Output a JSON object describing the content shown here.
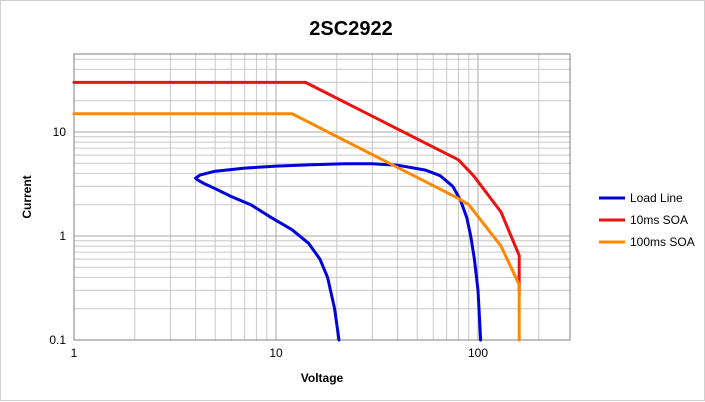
{
  "chart_data": {
    "type": "line",
    "title": "2SC2922",
    "xlabel": "Voltage",
    "ylabel": "Current",
    "x_scale": "log",
    "y_scale": "log",
    "xlim": [
      1,
      300
    ],
    "ylim": [
      0.1,
      50
    ],
    "x_ticks": [
      "1",
      "10",
      "100"
    ],
    "y_ticks": [
      "0.1",
      "1",
      "10"
    ],
    "grid": true,
    "legend_position": "right",
    "series": [
      {
        "name": "Load Line",
        "color": "#0000dd",
        "x": [
          20.5,
          19.5,
          18,
          16.5,
          14.5,
          12,
          9.5,
          7.5,
          6,
          5,
          4.4,
          4.1,
          4.0,
          4.2,
          5,
          7,
          10,
          15,
          22,
          30,
          40,
          55,
          65,
          75,
          82,
          88,
          92,
          96,
          100,
          102,
          103
        ],
        "y": [
          0.1,
          0.2,
          0.4,
          0.6,
          0.85,
          1.15,
          1.5,
          2.0,
          2.4,
          2.85,
          3.2,
          3.45,
          3.6,
          3.85,
          4.2,
          4.5,
          4.7,
          4.85,
          4.95,
          4.95,
          4.8,
          4.3,
          3.8,
          3.0,
          2.2,
          1.5,
          1.0,
          0.6,
          0.3,
          0.15,
          0.1
        ]
      },
      {
        "name": "10ms SOA",
        "color": "#ee1111",
        "x": [
          1,
          14,
          80,
          95,
          130,
          160,
          160
        ],
        "y": [
          30,
          30,
          5.4,
          3.8,
          1.7,
          0.65,
          0.3
        ]
      },
      {
        "name": "100ms SOA",
        "color": "#ff8800",
        "x": [
          1,
          12,
          80,
          90,
          130,
          160,
          160
        ],
        "y": [
          15,
          15,
          2.3,
          2.0,
          0.8,
          0.34,
          0.1
        ]
      }
    ]
  }
}
